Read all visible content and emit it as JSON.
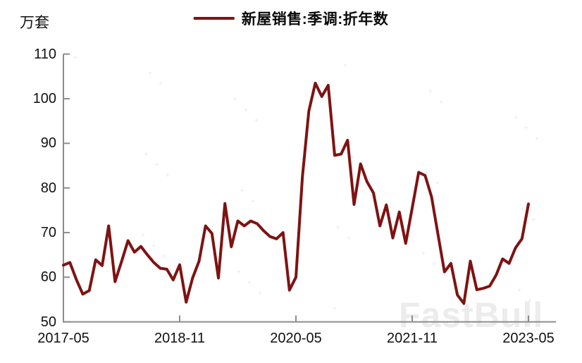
{
  "unit_label": "万套",
  "legend": {
    "label": "新屋销售:季调:折年数"
  },
  "watermark": "FastBull",
  "colors": {
    "series": "#7e1312",
    "axis": "#8c8c8c",
    "text": "#111111"
  },
  "chart_data": {
    "type": "line",
    "title": "",
    "series": [
      {
        "name": "新屋销售:季调:折年数",
        "values": [
          62.7,
          63.3,
          59.5,
          56.2,
          57.0,
          63.9,
          62.6,
          71.5,
          59.0,
          63.5,
          68.2,
          65.6,
          66.9,
          65.0,
          63.3,
          62.0,
          61.8,
          59.4,
          62.8,
          54.4,
          59.8,
          63.6,
          71.5,
          69.8,
          59.8,
          76.5,
          66.8,
          72.6,
          71.5,
          72.6,
          72.0,
          70.4,
          69.1,
          68.6,
          70.0,
          57.1,
          60.0,
          82.5,
          97.2,
          103.5,
          100.5,
          103.0,
          87.3,
          87.6,
          90.7,
          76.3,
          85.4,
          81.4,
          78.9,
          71.5,
          76.2,
          68.8,
          74.6,
          67.6,
          75.5,
          83.5,
          82.8,
          78.0,
          69.5,
          61.2,
          63.1,
          56.0,
          54.1,
          63.6,
          57.2,
          57.5,
          58.0,
          60.5,
          64.1,
          63.1,
          66.6,
          68.6,
          76.4
        ]
      }
    ],
    "x": [
      "2017-05",
      "2017-06",
      "2017-07",
      "2017-08",
      "2017-09",
      "2017-10",
      "2017-11",
      "2017-12",
      "2018-01",
      "2018-02",
      "2018-03",
      "2018-04",
      "2018-05",
      "2018-06",
      "2018-07",
      "2018-08",
      "2018-09",
      "2018-10",
      "2018-11",
      "2018-12",
      "2019-01",
      "2019-02",
      "2019-03",
      "2019-04",
      "2019-05",
      "2019-06",
      "2019-07",
      "2019-08",
      "2019-09",
      "2019-10",
      "2019-11",
      "2019-12",
      "2020-01",
      "2020-02",
      "2020-03",
      "2020-04",
      "2020-05",
      "2020-06",
      "2020-07",
      "2020-08",
      "2020-09",
      "2020-10",
      "2020-11",
      "2020-12",
      "2021-01",
      "2021-02",
      "2021-03",
      "2021-04",
      "2021-05",
      "2021-06",
      "2021-07",
      "2021-08",
      "2021-09",
      "2021-10",
      "2021-11",
      "2021-12",
      "2022-01",
      "2022-02",
      "2022-03",
      "2022-04",
      "2022-05",
      "2022-06",
      "2022-07",
      "2022-08",
      "2022-09",
      "2022-10",
      "2022-11",
      "2022-12",
      "2023-01",
      "2023-02",
      "2023-03",
      "2023-04",
      "2023-05"
    ],
    "x_tick_labels": [
      "2017-05",
      "2018-11",
      "2020-05",
      "2021-11",
      "2023-05"
    ],
    "x_tick_month_index": [
      0,
      18,
      36,
      54,
      72
    ],
    "y_ticks": [
      50,
      60,
      70,
      80,
      90,
      100,
      110
    ],
    "ylim": [
      50,
      110
    ],
    "ylabel": "万套",
    "grid": "off",
    "legend_position": "top-center"
  }
}
